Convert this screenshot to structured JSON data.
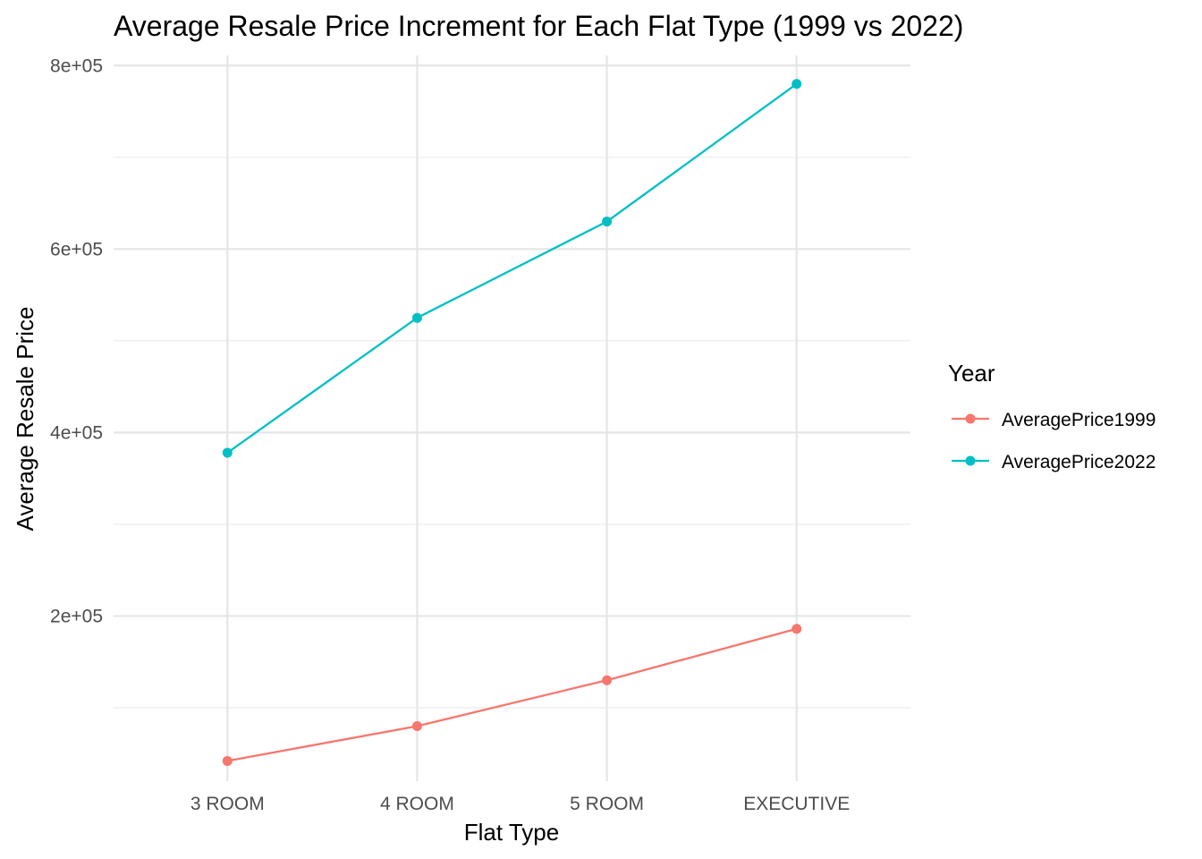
{
  "chart_data": {
    "type": "line",
    "title": "Average Resale Price Increment for Each Flat Type (1999 vs 2022)",
    "xlabel": "Flat Type",
    "ylabel": "Average Resale Price",
    "categories": [
      "3 ROOM",
      "4 ROOM",
      "5 ROOM",
      "EXECUTIVE"
    ],
    "ylim": [
      20000,
      811000
    ],
    "yticks": [
      {
        "value": 200000,
        "label": "2e+05"
      },
      {
        "value": 400000,
        "label": "4e+05"
      },
      {
        "value": 600000,
        "label": "6e+05"
      },
      {
        "value": 800000,
        "label": "8e+05"
      }
    ],
    "yminor": [
      100000,
      300000,
      500000,
      700000
    ],
    "legend_title": "Year",
    "legend_position": "right",
    "grid": true,
    "series": [
      {
        "name": "AveragePrice1999",
        "color": "#F8766D",
        "values": [
          42000,
          80000,
          130000,
          186000
        ]
      },
      {
        "name": "AveragePrice2022",
        "color": "#00BFC4",
        "values": [
          378000,
          525000,
          630000,
          780000
        ]
      }
    ]
  }
}
